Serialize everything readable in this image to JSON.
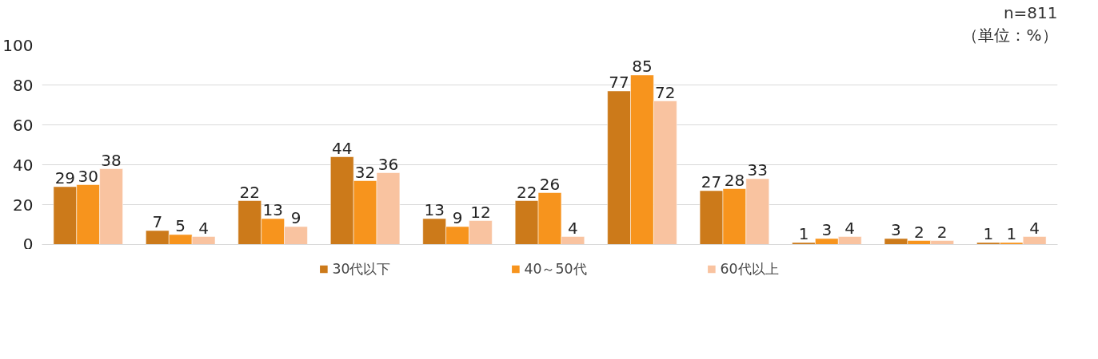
{
  "chart_data": {
    "type": "bar",
    "categories": [
      null,
      null,
      null,
      null,
      null,
      null,
      null,
      null,
      null,
      null,
      null
    ],
    "series": [
      {
        "name": "30代以下",
        "color": "#cc7a1a",
        "values": [
          29,
          7,
          22,
          44,
          13,
          22,
          77,
          27,
          1,
          3,
          1
        ]
      },
      {
        "name": "40～50代",
        "color": "#f7941d",
        "values": [
          30,
          5,
          13,
          32,
          9,
          26,
          85,
          28,
          3,
          2,
          1
        ]
      },
      {
        "name": "60代以上",
        "color": "#f9c3a0",
        "values": [
          38,
          4,
          9,
          36,
          12,
          4,
          72,
          33,
          4,
          2,
          4
        ]
      }
    ],
    "ylim": [
      0,
      100
    ],
    "yticks": [
      0,
      20,
      40,
      60,
      80,
      100
    ],
    "grid": "y",
    "legend": "bottom",
    "data_labels": true,
    "annotations": [
      "n=811",
      "（単位：%）"
    ]
  }
}
